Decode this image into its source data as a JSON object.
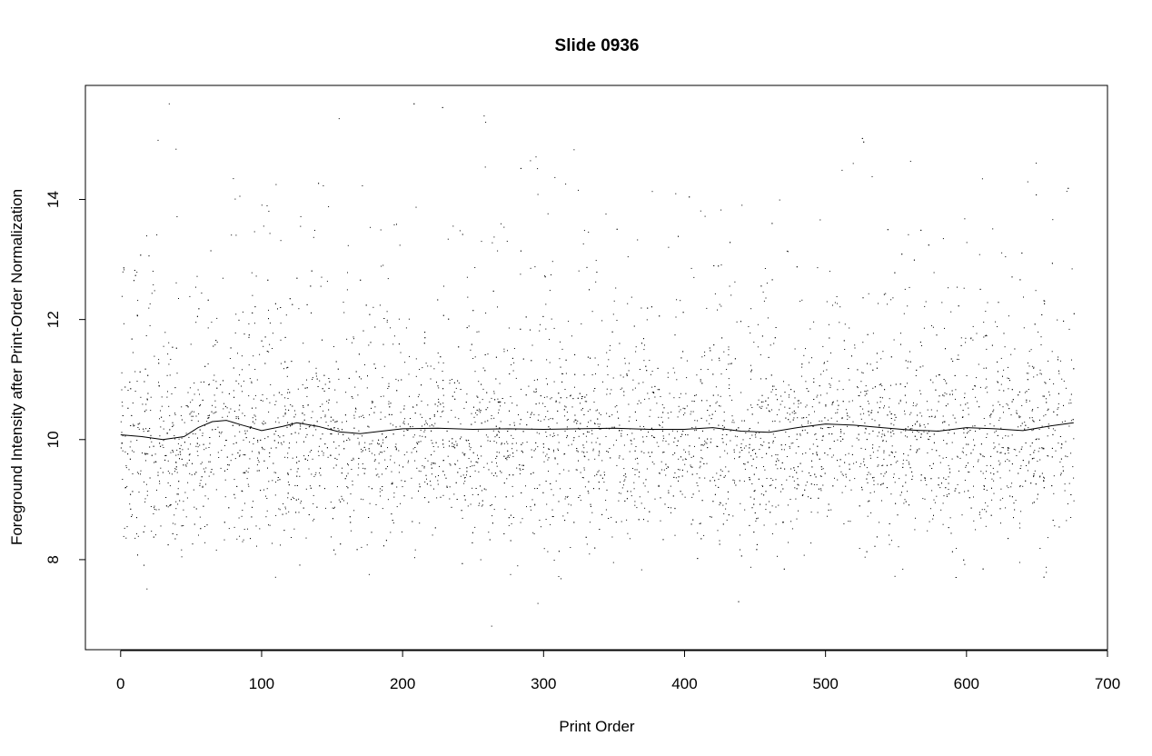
{
  "chart_data": {
    "type": "scatter",
    "title": "Slide 0936",
    "xlabel": "Print Order",
    "ylabel": "Foreground Intensity after Print-Order Normalization",
    "xlim": [
      -25,
      700
    ],
    "ylim": [
      6.5,
      15.9
    ],
    "xticks": [
      0,
      100,
      200,
      300,
      400,
      500,
      600,
      700
    ],
    "yticks": [
      8,
      10,
      12,
      14
    ],
    "grid": false,
    "legend": "none",
    "point_color": "#000000",
    "line_color": "#000000",
    "series": [
      {
        "kind": "points",
        "x_range": [
          0,
          676
        ],
        "center": 10.1,
        "core_range": [
          8.3,
          12.0
        ],
        "full_range": [
          6.9,
          15.6
        ]
      },
      {
        "kind": "smoothed-line",
        "x": [
          0,
          15,
          30,
          45,
          55,
          65,
          75,
          85,
          100,
          115,
          125,
          140,
          155,
          170,
          185,
          200,
          225,
          250,
          275,
          300,
          325,
          350,
          375,
          400,
          420,
          440,
          460,
          480,
          500,
          520,
          540,
          560,
          580,
          600,
          620,
          640,
          660,
          676
        ],
        "y": [
          10.08,
          10.05,
          10.0,
          10.05,
          10.2,
          10.3,
          10.32,
          10.25,
          10.15,
          10.22,
          10.28,
          10.22,
          10.13,
          10.1,
          10.14,
          10.18,
          10.19,
          10.17,
          10.18,
          10.17,
          10.18,
          10.19,
          10.17,
          10.17,
          10.2,
          10.14,
          10.12,
          10.2,
          10.26,
          10.24,
          10.2,
          10.16,
          10.14,
          10.2,
          10.18,
          10.15,
          10.23,
          10.28
        ]
      }
    ]
  }
}
